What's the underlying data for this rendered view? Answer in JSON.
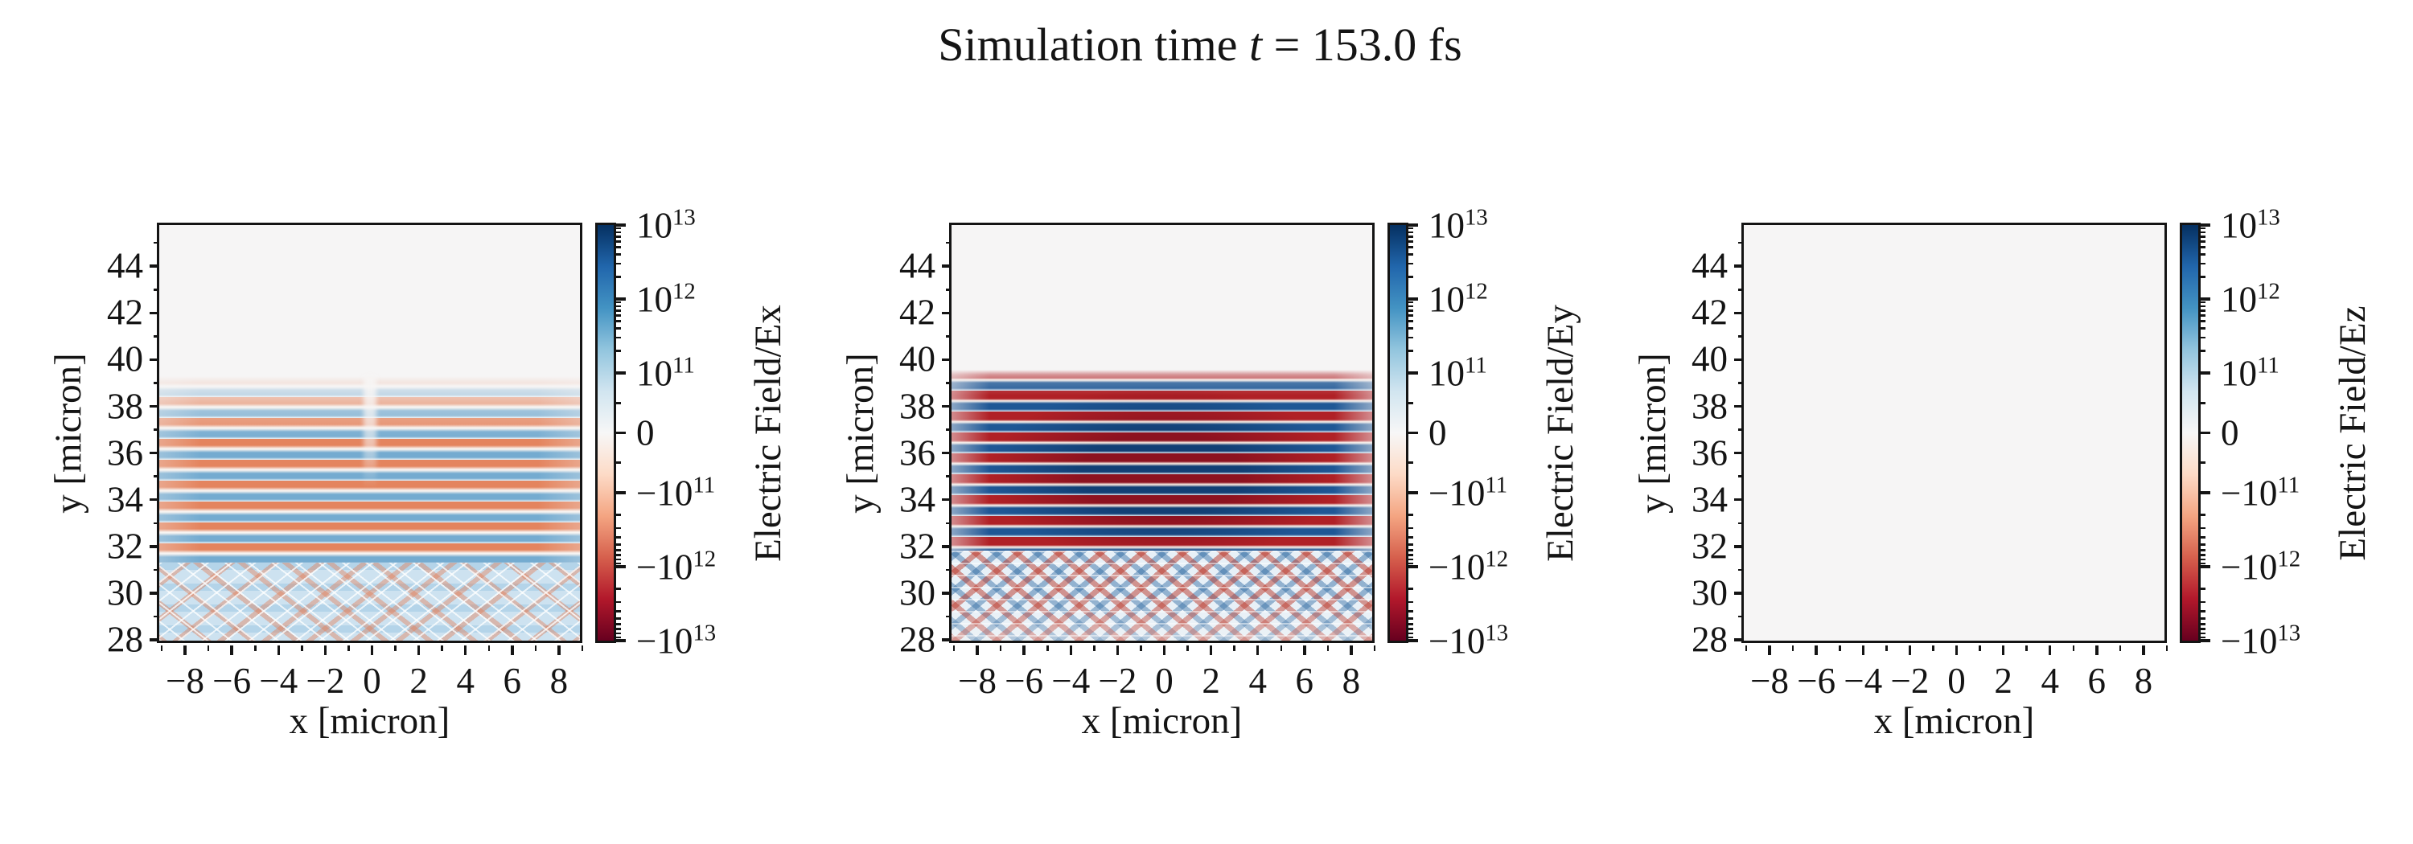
{
  "title": {
    "prefix": "Simulation time ",
    "var": "t",
    "suffix": " = 153.0 fs"
  },
  "sim_time_fs": 153.0,
  "colors": {
    "bg-empty": "#f6f5f5",
    "spine": "#141414",
    "ex-red": "#e4845e",
    "ex-blue": "#74abd0",
    "ey-red": "#b02126",
    "ey-blue": "#1f5795",
    "ey-red-dark": "#8c1220",
    "ey-blue-dark": "#123f74"
  },
  "colormap_stops_bottom_to_top": [
    "#67001f",
    "#b2182b",
    "#d6604d",
    "#f4a582",
    "#fddbc7",
    "#f7f7f7",
    "#d1e5f0",
    "#92c5de",
    "#4393c3",
    "#2166ac",
    "#053061"
  ],
  "panels": [
    {
      "ylabel": "y [micron]",
      "xlabel": "x [micron]",
      "cb_label": "Electric Field/Ex"
    },
    {
      "ylabel": "y [micron]",
      "xlabel": "x [micron]",
      "cb_label": "Electric Field/Ey"
    },
    {
      "ylabel": "y [micron]",
      "xlabel": "x [micron]",
      "cb_label": "Electric Field/Ez"
    }
  ],
  "chart_data": {
    "type": "heatmap",
    "suptitle": "Simulation time t = 153.0 fs",
    "colormap": "RdBu",
    "colorbar_scale": "symlog",
    "linthresh": 100000000000.0,
    "clim": [
      -10000000000000.0,
      10000000000000.0
    ],
    "panels": [
      {
        "name": "Ex",
        "xlabel": "x [micron]",
        "ylabel": "y [micron]",
        "colorbar_label": "Electric Field/Ex",
        "xlim": [
          -9.1,
          9.1
        ],
        "ylim": [
          27.76,
          45.77
        ],
        "x_ticks": [
          -8,
          -6,
          -4,
          -2,
          0,
          2,
          4,
          6,
          8
        ],
        "y_ticks": [
          28,
          30,
          32,
          34,
          36,
          38,
          40,
          42,
          44
        ],
        "colorbar_ticks": [
          "10^13",
          "10^12",
          "10^11",
          "0",
          "-10^11",
          "-10^12",
          "-10^13"
        ],
        "description": "Moderate horizontal red/blue wave fronts (period ~0.9 micron) between y~31.5 and y~39 with a weak vertical seam at x=0; crisscross interference lattice of light-blue diagonals with orange nodes below y~31.5; field ~0 above y~39."
      },
      {
        "name": "Ey",
        "xlabel": "x [micron]",
        "ylabel": "y [micron]",
        "colorbar_label": "Electric Field/Ey",
        "xlim": [
          -9.1,
          9.1
        ],
        "ylim": [
          27.76,
          45.77
        ],
        "x_ticks": [
          -8,
          -6,
          -4,
          -2,
          0,
          2,
          4,
          6,
          8
        ],
        "y_ticks": [
          28,
          30,
          32,
          34,
          36,
          38,
          40,
          42,
          44
        ],
        "colorbar_ticks": [
          "10^13",
          "10^12",
          "10^11",
          "0",
          "-10^11",
          "-10^12",
          "-10^13"
        ],
        "description": "Strong saturated horizontal red/blue wave fronts between y~32 and y~39.4, darkest near x=0, y 33-37.5; red/blue checkerboard interference fan below y~32; field ~0 above y~39.5."
      },
      {
        "name": "Ez",
        "xlabel": "x [micron]",
        "ylabel": "y [micron]",
        "colorbar_label": "Electric Field/Ez",
        "xlim": [
          -9.1,
          9.1
        ],
        "ylim": [
          27.76,
          45.77
        ],
        "x_ticks": [
          -8,
          -6,
          -4,
          -2,
          0,
          2,
          4,
          6,
          8
        ],
        "y_ticks": [
          28,
          30,
          32,
          34,
          36,
          38,
          40,
          42,
          44
        ],
        "colorbar_ticks": [
          "10^13",
          "10^12",
          "10^11",
          "0",
          "-10^11",
          "-10^12",
          "-10^13"
        ],
        "description": "Uniformly zero field (blank near-white panel)."
      }
    ]
  }
}
